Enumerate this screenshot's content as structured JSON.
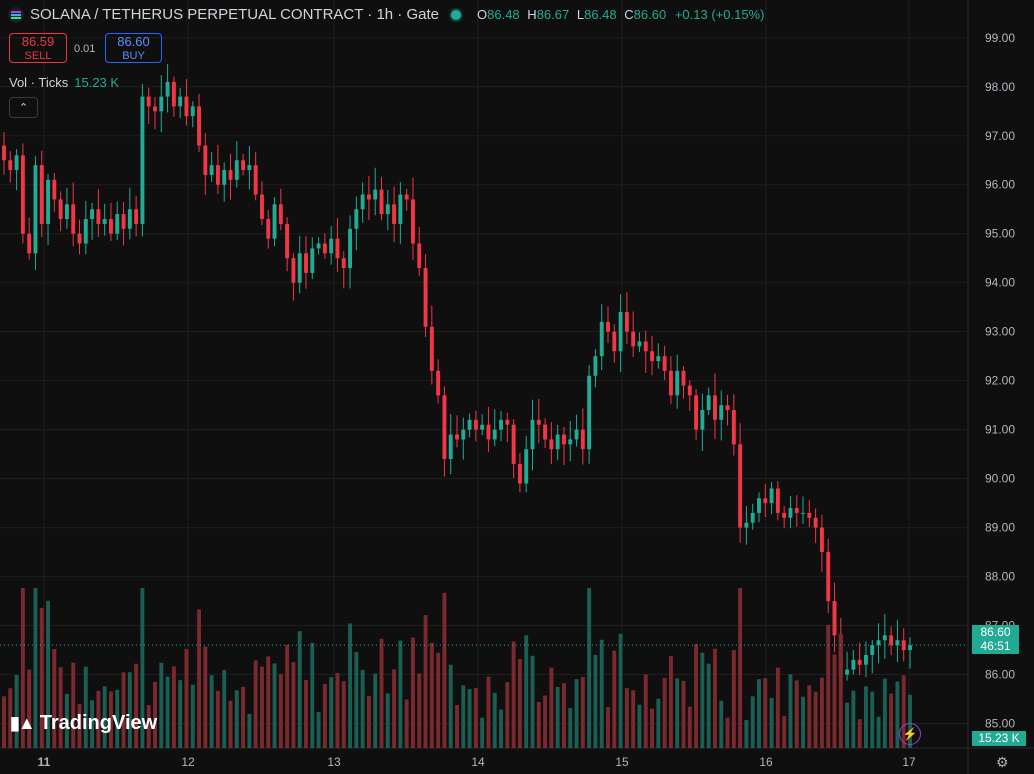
{
  "header": {
    "title": "SOLANA / TETHERUS PERPETUAL CONTRACT · 1h · Gate",
    "ohlc": [
      {
        "k": "O",
        "v": "86.48"
      },
      {
        "k": "H",
        "v": "86.67"
      },
      {
        "k": "L",
        "v": "86.48"
      },
      {
        "k": "C",
        "v": "86.60"
      }
    ],
    "change": "+0.13 (+0.15%)"
  },
  "trade": {
    "sell_price": "86.59",
    "sell_label": "SELL",
    "spread": "0.01",
    "buy_price": "86.60",
    "buy_label": "BUY"
  },
  "volume_legend": {
    "label": "Vol · Ticks",
    "value": "15.23 K"
  },
  "collapse_icon": "chevron-up-icon",
  "branding": {
    "name": "TradingView"
  },
  "price_tag": {
    "price": "86.60",
    "countdown": "46:51"
  },
  "volume_tag": "15.23 K",
  "colors": {
    "up": "#22ab94",
    "down": "#f23645",
    "background": "#0f0f0f",
    "grid": "#1e1e1e"
  },
  "chart_data": {
    "type": "candlestick",
    "price_axis": {
      "min": 84.5,
      "max": 99.2,
      "ticks": [
        "85.00",
        "86.00",
        "87.00",
        "88.00",
        "89.00",
        "90.00",
        "91.00",
        "92.00",
        "93.00",
        "94.00",
        "95.00",
        "96.00",
        "97.00",
        "98.00",
        "99.00"
      ]
    },
    "time_axis": {
      "labels": [
        "11",
        "12",
        "13",
        "14",
        "15",
        "16",
        "17"
      ]
    },
    "last_price": 86.6,
    "close": [
      96.5,
      96.3,
      96.6,
      95.0,
      94.6,
      96.4,
      95.2,
      96.1,
      95.7,
      95.3,
      95.6,
      95.0,
      94.8,
      95.3,
      95.5,
      95.2,
      95.3,
      95.0,
      95.4,
      95.1,
      95.5,
      95.2,
      97.8,
      97.6,
      97.5,
      97.8,
      98.1,
      97.6,
      97.8,
      97.4,
      97.6,
      96.8,
      96.2,
      96.4,
      96.0,
      96.3,
      96.1,
      96.5,
      96.3,
      96.4,
      95.8,
      95.3,
      94.9,
      95.6,
      95.2,
      94.5,
      94.0,
      94.6,
      94.2,
      94.7,
      94.8,
      94.6,
      94.9,
      94.5,
      94.3,
      95.1,
      95.5,
      95.8,
      95.7,
      95.9,
      95.4,
      95.6,
      95.2,
      95.8,
      95.7,
      94.8,
      94.3,
      93.1,
      92.2,
      91.7,
      90.4,
      90.9,
      90.8,
      91.0,
      91.2,
      91.0,
      91.1,
      90.8,
      91.0,
      91.2,
      91.1,
      90.3,
      89.9,
      90.6,
      91.2,
      91.1,
      90.8,
      90.6,
      90.9,
      90.7,
      90.8,
      91.0,
      90.6,
      92.1,
      92.5,
      93.2,
      93.0,
      92.6,
      93.4,
      93.0,
      92.7,
      92.8,
      92.6,
      92.4,
      92.5,
      92.2,
      91.7,
      92.2,
      91.9,
      91.7,
      91.0,
      91.4,
      91.7,
      91.2,
      91.5,
      91.4,
      90.7,
      89.0,
      89.1,
      89.3,
      89.6,
      89.5,
      89.8,
      89.3,
      89.2,
      89.4,
      89.3,
      89.3,
      89.2,
      89.0,
      88.5,
      87.5,
      86.8,
      86.0,
      86.1,
      86.3,
      86.2,
      86.4,
      86.6,
      86.7,
      86.8,
      86.6,
      86.7,
      86.5,
      86.6
    ]
  }
}
